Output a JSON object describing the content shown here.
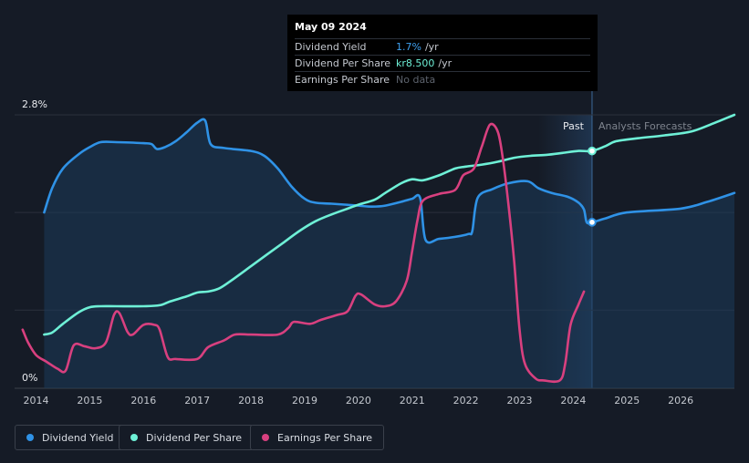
{
  "tooltip": {
    "date": "May 09 2024",
    "rows": [
      {
        "label": "Dividend Yield",
        "value": "1.7%",
        "unit": "/yr",
        "color": "#3fa0ef"
      },
      {
        "label": "Dividend Per Share",
        "value": "kr8.500",
        "unit": "/yr",
        "color": "#6ef0d6"
      },
      {
        "label": "Earnings Per Share",
        "value": "No data",
        "unit": "",
        "color": "#5d636d"
      }
    ]
  },
  "legend": [
    {
      "label": "Dividend Yield",
      "color": "#2f92e6"
    },
    {
      "label": "Dividend Per Share",
      "color": "#6ef0d6"
    },
    {
      "label": "Earnings Per Share",
      "color": "#d8407f"
    }
  ],
  "chart_data": {
    "type": "line",
    "x_range": [
      2013.6,
      2027.0
    ],
    "y_range_percent": [
      0,
      2.8
    ],
    "y_tick_labels": [
      "2.8%",
      "0%"
    ],
    "x_tick_labels": [
      "2014",
      "2015",
      "2016",
      "2017",
      "2018",
      "2019",
      "2020",
      "2021",
      "2022",
      "2023",
      "2024",
      "2025",
      "2026"
    ],
    "x_ticks": [
      2014,
      2015,
      2016,
      2017,
      2018,
      2019,
      2020,
      2021,
      2022,
      2023,
      2024,
      2025,
      2026
    ],
    "past_label": "Past",
    "forecast_label": "Analysts Forecasts",
    "forecast_start": 2024.35,
    "highlight_start": 2023.35,
    "colors": {
      "yield": "#2f92e6",
      "dps": "#6ef0d6",
      "eps": "#d8407f",
      "grid": "#2b313c",
      "axis_text": "#c4c8cf"
    },
    "series": [
      {
        "name": "Dividend Yield",
        "unit": "%",
        "points": [
          [
            2014.15,
            1.8
          ],
          [
            2014.3,
            2.05
          ],
          [
            2014.5,
            2.25
          ],
          [
            2014.8,
            2.4
          ],
          [
            2015.0,
            2.47
          ],
          [
            2015.2,
            2.52
          ],
          [
            2015.5,
            2.52
          ],
          [
            2016.0,
            2.51
          ],
          [
            2016.15,
            2.5
          ],
          [
            2016.25,
            2.45
          ],
          [
            2016.4,
            2.47
          ],
          [
            2016.6,
            2.53
          ],
          [
            2016.8,
            2.62
          ],
          [
            2017.0,
            2.72
          ],
          [
            2017.15,
            2.74
          ],
          [
            2017.25,
            2.5
          ],
          [
            2017.5,
            2.46
          ],
          [
            2018.0,
            2.43
          ],
          [
            2018.25,
            2.38
          ],
          [
            2018.5,
            2.25
          ],
          [
            2018.75,
            2.07
          ],
          [
            2019.0,
            1.94
          ],
          [
            2019.2,
            1.9
          ],
          [
            2019.5,
            1.89
          ],
          [
            2020.0,
            1.87
          ],
          [
            2020.25,
            1.86
          ],
          [
            2020.5,
            1.87
          ],
          [
            2020.8,
            1.91
          ],
          [
            2021.0,
            1.94
          ],
          [
            2021.15,
            1.95
          ],
          [
            2021.25,
            1.52
          ],
          [
            2021.5,
            1.53
          ],
          [
            2021.8,
            1.55
          ],
          [
            2022.05,
            1.58
          ],
          [
            2022.12,
            1.61
          ],
          [
            2022.22,
            1.95
          ],
          [
            2022.5,
            2.04
          ],
          [
            2022.8,
            2.1
          ],
          [
            2023.15,
            2.12
          ],
          [
            2023.35,
            2.05
          ],
          [
            2023.6,
            2.0
          ],
          [
            2023.9,
            1.96
          ],
          [
            2024.1,
            1.9
          ],
          [
            2024.2,
            1.83
          ],
          [
            2024.25,
            1.7
          ],
          [
            2024.35,
            1.7
          ],
          [
            2024.6,
            1.74
          ],
          [
            2025.0,
            1.8
          ],
          [
            2026.0,
            1.84
          ],
          [
            2026.5,
            1.91
          ],
          [
            2027.0,
            2.0
          ]
        ]
      },
      {
        "name": "Dividend Per Share",
        "unit": "kr",
        "points": [
          [
            2014.15,
            0.55
          ],
          [
            2014.3,
            0.57
          ],
          [
            2014.5,
            0.66
          ],
          [
            2014.8,
            0.78
          ],
          [
            2015.0,
            0.83
          ],
          [
            2015.2,
            0.84
          ],
          [
            2015.5,
            0.84
          ],
          [
            2016.0,
            0.84
          ],
          [
            2016.3,
            0.85
          ],
          [
            2016.5,
            0.89
          ],
          [
            2016.8,
            0.94
          ],
          [
            2017.0,
            0.98
          ],
          [
            2017.2,
            0.99
          ],
          [
            2017.4,
            1.02
          ],
          [
            2017.6,
            1.09
          ],
          [
            2018.0,
            1.25
          ],
          [
            2018.3,
            1.37
          ],
          [
            2018.6,
            1.49
          ],
          [
            2018.9,
            1.61
          ],
          [
            2019.2,
            1.71
          ],
          [
            2019.5,
            1.78
          ],
          [
            2019.8,
            1.84
          ],
          [
            2020.0,
            1.88
          ],
          [
            2020.3,
            1.93
          ],
          [
            2020.5,
            2.0
          ],
          [
            2020.8,
            2.1
          ],
          [
            2021.0,
            2.14
          ],
          [
            2021.2,
            2.13
          ],
          [
            2021.5,
            2.18
          ],
          [
            2021.8,
            2.25
          ],
          [
            2022.0,
            2.27
          ],
          [
            2022.3,
            2.29
          ],
          [
            2022.6,
            2.32
          ],
          [
            2022.9,
            2.36
          ],
          [
            2023.2,
            2.38
          ],
          [
            2023.5,
            2.39
          ],
          [
            2023.8,
            2.41
          ],
          [
            2024.1,
            2.43
          ],
          [
            2024.35,
            2.43
          ],
          [
            2024.6,
            2.48
          ],
          [
            2024.8,
            2.53
          ],
          [
            2025.2,
            2.56
          ],
          [
            2025.7,
            2.59
          ],
          [
            2026.2,
            2.63
          ],
          [
            2026.6,
            2.71
          ],
          [
            2027.0,
            2.8
          ]
        ]
      },
      {
        "name": "Earnings Per Share",
        "unit": "kr",
        "points": [
          [
            2013.75,
            0.6
          ],
          [
            2013.85,
            0.47
          ],
          [
            2014.0,
            0.34
          ],
          [
            2014.2,
            0.27
          ],
          [
            2014.4,
            0.2
          ],
          [
            2014.55,
            0.18
          ],
          [
            2014.7,
            0.44
          ],
          [
            2014.9,
            0.43
          ],
          [
            2015.1,
            0.41
          ],
          [
            2015.3,
            0.47
          ],
          [
            2015.45,
            0.75
          ],
          [
            2015.55,
            0.77
          ],
          [
            2015.7,
            0.58
          ],
          [
            2015.8,
            0.55
          ],
          [
            2016.0,
            0.65
          ],
          [
            2016.2,
            0.65
          ],
          [
            2016.3,
            0.6
          ],
          [
            2016.45,
            0.32
          ],
          [
            2016.6,
            0.3
          ],
          [
            2017.0,
            0.3
          ],
          [
            2017.2,
            0.42
          ],
          [
            2017.5,
            0.49
          ],
          [
            2017.7,
            0.55
          ],
          [
            2018.0,
            0.55
          ],
          [
            2018.5,
            0.55
          ],
          [
            2018.7,
            0.62
          ],
          [
            2018.8,
            0.68
          ],
          [
            2019.1,
            0.66
          ],
          [
            2019.3,
            0.7
          ],
          [
            2019.6,
            0.75
          ],
          [
            2019.8,
            0.79
          ],
          [
            2019.95,
            0.95
          ],
          [
            2020.05,
            0.96
          ],
          [
            2020.3,
            0.86
          ],
          [
            2020.5,
            0.84
          ],
          [
            2020.7,
            0.89
          ],
          [
            2020.9,
            1.1
          ],
          [
            2021.0,
            1.4
          ],
          [
            2021.1,
            1.72
          ],
          [
            2021.2,
            1.92
          ],
          [
            2021.5,
            1.99
          ],
          [
            2021.8,
            2.03
          ],
          [
            2021.95,
            2.18
          ],
          [
            2022.15,
            2.25
          ],
          [
            2022.3,
            2.48
          ],
          [
            2022.45,
            2.7
          ],
          [
            2022.6,
            2.62
          ],
          [
            2022.7,
            2.31
          ],
          [
            2022.8,
            1.85
          ],
          [
            2022.9,
            1.3
          ],
          [
            2023.0,
            0.6
          ],
          [
            2023.1,
            0.25
          ],
          [
            2023.3,
            0.1
          ],
          [
            2023.45,
            0.08
          ],
          [
            2023.75,
            0.08
          ],
          [
            2023.85,
            0.25
          ],
          [
            2023.95,
            0.65
          ],
          [
            2024.1,
            0.86
          ],
          [
            2024.2,
            0.99
          ]
        ]
      }
    ],
    "highlight_points": [
      {
        "series": "Dividend Yield",
        "x": 2024.35,
        "y": 1.7
      },
      {
        "series": "Dividend Per Share",
        "x": 2024.35,
        "y": 2.43
      }
    ]
  }
}
